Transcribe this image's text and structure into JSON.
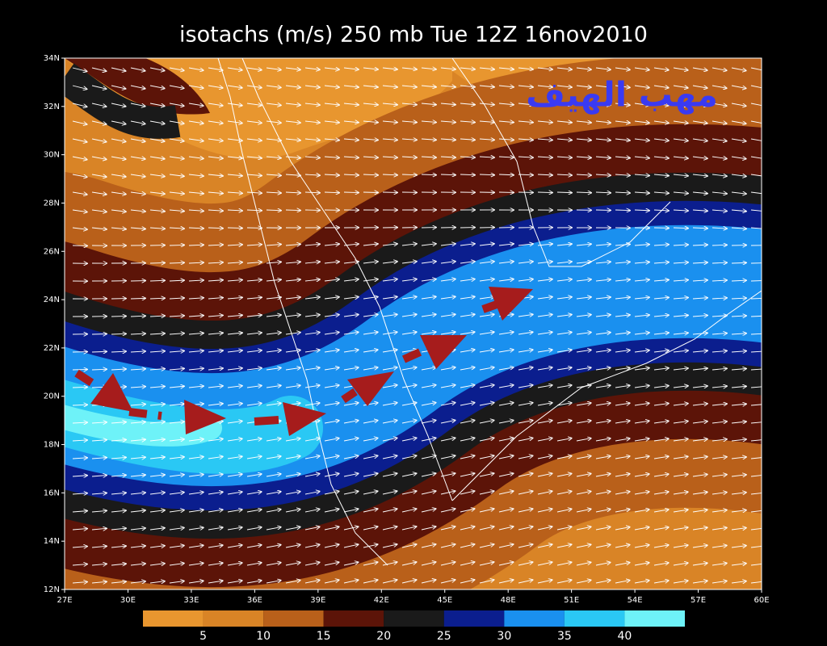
{
  "title": "isotachs (m/s) 250 mb Tue 12Z 16nov2010",
  "watermark": "مهب الهيف",
  "map": {
    "lat_ticks": [
      "34N",
      "32N",
      "30N",
      "28N",
      "26N",
      "24N",
      "22N",
      "20N",
      "18N",
      "16N",
      "14N",
      "12N"
    ],
    "lon_ticks": [
      "27E",
      "30E",
      "33E",
      "36E",
      "39E",
      "42E",
      "45E",
      "48E",
      "51E",
      "54E",
      "57E",
      "60E"
    ]
  },
  "colorbar": {
    "colors": [
      "#e8962f",
      "#d98426",
      "#b9601a",
      "#5c1408",
      "#1a1a1a",
      "#0b1e8e",
      "#1a90ef",
      "#2ac8f4",
      "#6ef2f8"
    ],
    "labels": [
      "5",
      "10",
      "15",
      "20",
      "25",
      "30",
      "35",
      "40"
    ]
  }
}
